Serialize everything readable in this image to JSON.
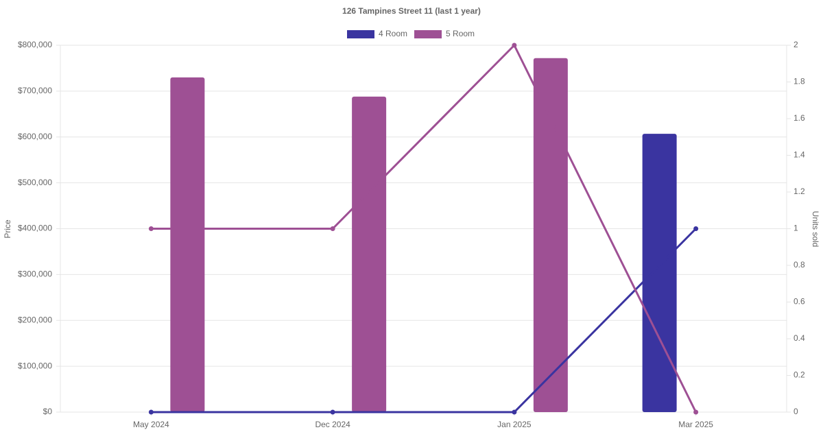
{
  "chart_data": {
    "type": "bar-line",
    "title": "126 Tampines Street 11 (last 1 year)",
    "categories": [
      "May 2024",
      "Dec 2024",
      "Jan 2025",
      "Mar 2025"
    ],
    "series": [
      {
        "name": "4 Room",
        "color": "#3a34a0",
        "values": [
          null,
          null,
          null,
          607000
        ],
        "y2_values": [
          0,
          0,
          0,
          1
        ]
      },
      {
        "name": "5 Room",
        "color": "#9e5094",
        "values": [
          730000,
          688000,
          772000,
          null
        ],
        "y2_values": [
          1,
          1,
          2,
          0
        ]
      }
    ],
    "y_label": "Price",
    "y2_label": "Units sold",
    "ylim": [
      0,
      800000
    ],
    "yticks": [
      {
        "value": 0,
        "label": "$0"
      },
      {
        "value": 100000,
        "label": "$100,000"
      },
      {
        "value": 200000,
        "label": "$200,000"
      },
      {
        "value": 300000,
        "label": "$300,000"
      },
      {
        "value": 400000,
        "label": "$400,000"
      },
      {
        "value": 500000,
        "label": "$500,000"
      },
      {
        "value": 600000,
        "label": "$600,000"
      },
      {
        "value": 700000,
        "label": "$700,000"
      },
      {
        "value": 800000,
        "label": "$800,000"
      }
    ],
    "y2lim": [
      0,
      2
    ],
    "y2ticks": [
      0,
      0.2,
      0.4,
      0.6,
      0.8,
      1,
      1.2,
      1.4,
      1.6,
      1.8,
      2
    ],
    "grid": true,
    "legend": "top"
  }
}
